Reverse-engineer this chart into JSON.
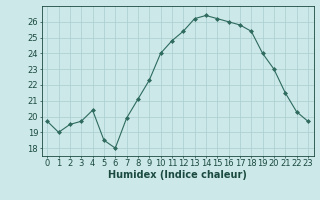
{
  "x": [
    0,
    1,
    2,
    3,
    4,
    5,
    6,
    7,
    8,
    9,
    10,
    11,
    12,
    13,
    14,
    15,
    16,
    17,
    18,
    19,
    20,
    21,
    22,
    23
  ],
  "y": [
    19.7,
    19.0,
    19.5,
    19.7,
    20.4,
    18.5,
    18.0,
    19.9,
    21.1,
    22.3,
    24.0,
    24.8,
    25.4,
    26.2,
    26.4,
    26.2,
    26.0,
    25.8,
    25.4,
    24.0,
    23.0,
    21.5,
    20.3,
    19.7
  ],
  "line_color": "#2e6b5e",
  "marker_color": "#2e6b5e",
  "bg_color": "#cce8e8",
  "grid_color": "#aacece",
  "xlabel": "Humidex (Indice chaleur)",
  "ylim": [
    17.5,
    27.0
  ],
  "yticks": [
    18,
    19,
    20,
    21,
    22,
    23,
    24,
    25,
    26
  ],
  "xticks": [
    0,
    1,
    2,
    3,
    4,
    5,
    6,
    7,
    8,
    9,
    10,
    11,
    12,
    13,
    14,
    15,
    16,
    17,
    18,
    19,
    20,
    21,
    22,
    23
  ],
  "axis_fontsize": 6.0,
  "xlabel_fontsize": 7.0,
  "label_color": "#1a4a40",
  "spine_color": "#1a4a40"
}
